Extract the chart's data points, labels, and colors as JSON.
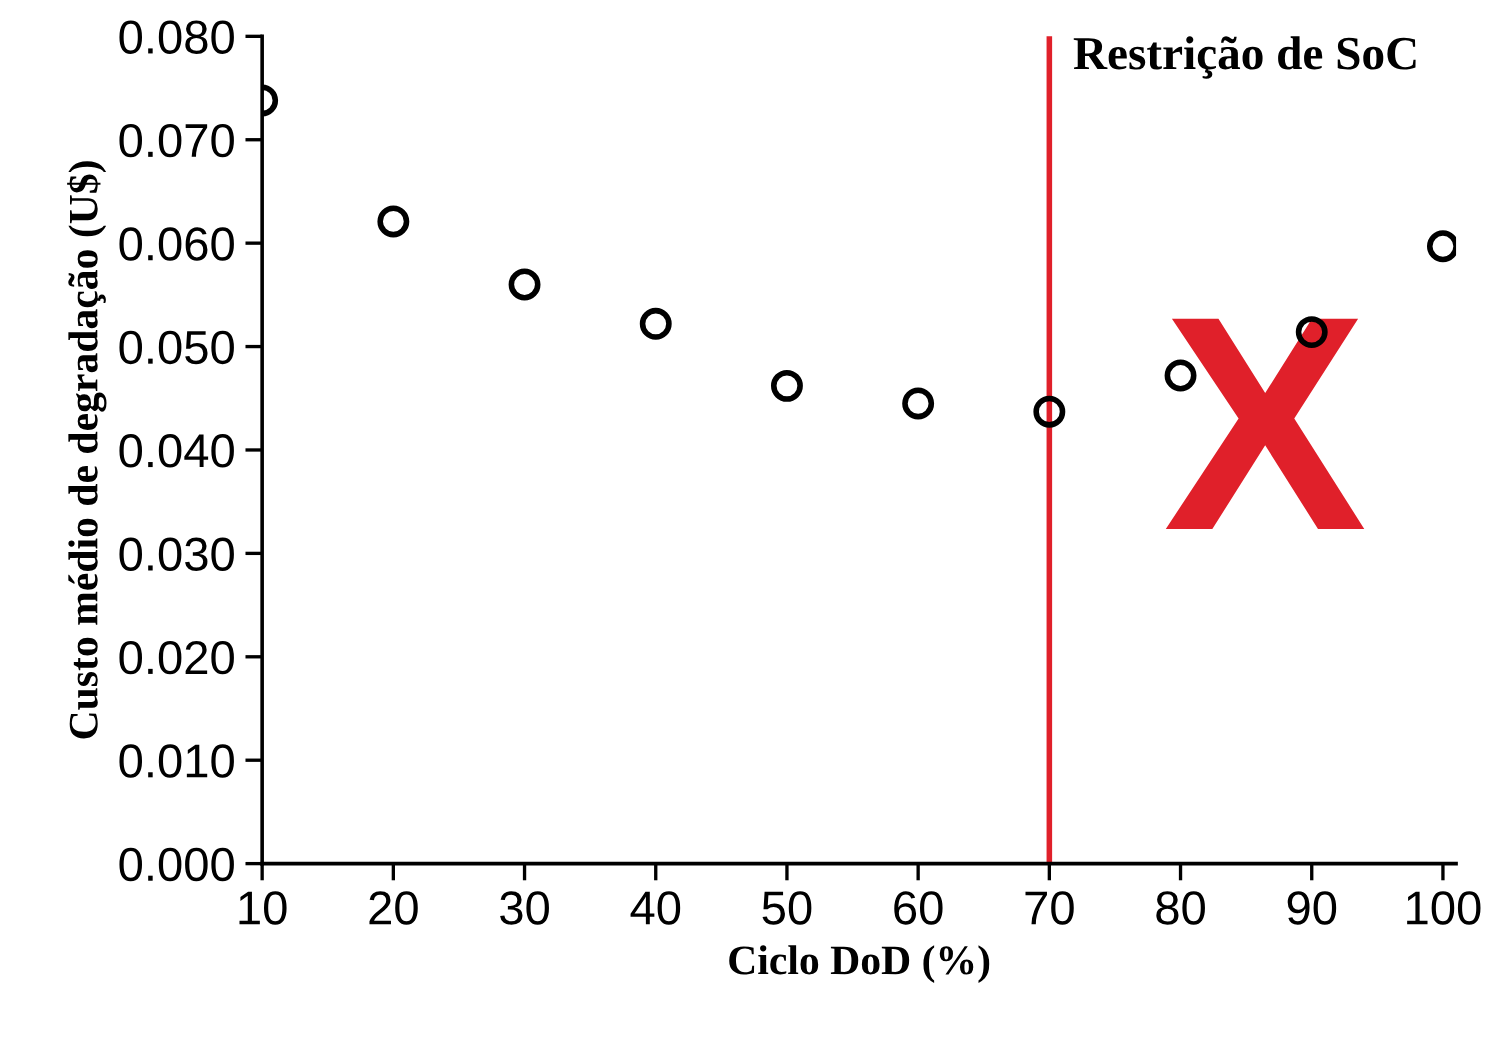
{
  "chart_data": {
    "type": "scatter",
    "xlabel": "Ciclo DoD (%)",
    "ylabel": "Custo médio de degradação (U$)",
    "x": [
      10,
      20,
      30,
      40,
      50,
      60,
      70,
      80,
      90,
      100
    ],
    "series": [
      {
        "color": "#000000",
        "values": [
          0.0738,
          0.0621,
          0.056,
          0.0522,
          0.0462,
          0.0445,
          0.0437,
          0.0472,
          0.0514,
          0.0597
        ]
      }
    ],
    "marker": "circle",
    "grid": false,
    "legend": false,
    "xlim": [
      10,
      101
    ],
    "xticks": [
      10,
      20,
      30,
      40,
      50,
      60,
      70,
      80,
      90,
      100
    ],
    "ylim": [
      0,
      0.08
    ],
    "yticks": [
      {
        "value": 0,
        "label": "0.000"
      },
      {
        "value": 0.01,
        "label": "0.010"
      },
      {
        "value": 0.02,
        "label": "0.020"
      },
      {
        "value": 0.03,
        "label": "0.030"
      },
      {
        "value": 0.04,
        "label": "0.040"
      },
      {
        "value": 0.05,
        "label": "0.050"
      },
      {
        "value": 0.06,
        "label": "0.060"
      },
      {
        "value": 0.07,
        "label": "0.070"
      },
      {
        "value": 0.08,
        "label": "0.080"
      }
    ],
    "ref_lines": [
      {
        "axis": "x",
        "value": 70,
        "label": "Restrição de SoC",
        "color": "#e0202a"
      }
    ],
    "annotations": [
      "X"
    ]
  }
}
